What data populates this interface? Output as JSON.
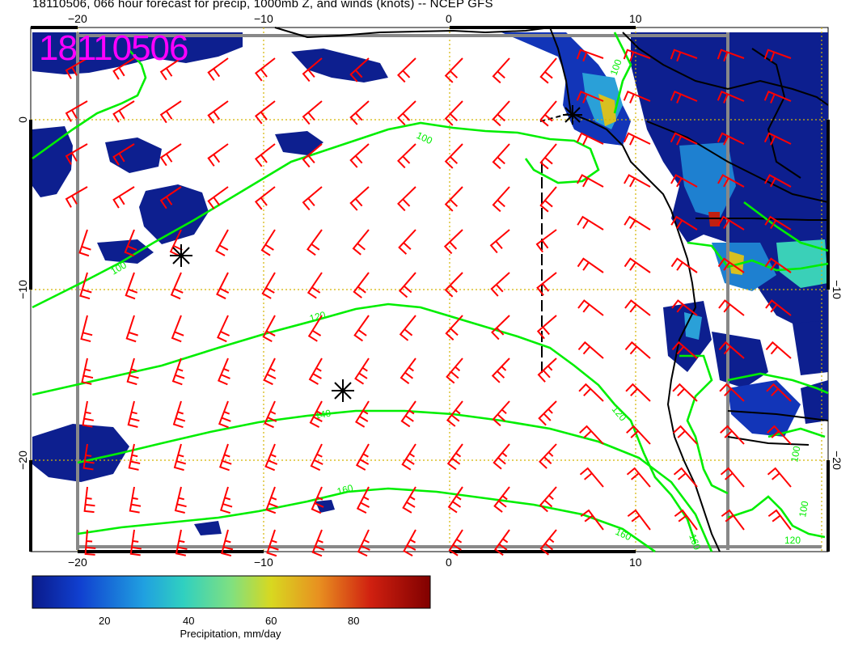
{
  "title": "18110506, 066 hour forecast for precip, 1000mb Z, and winds (knots) -- NCEP GFS",
  "date_stamp": "18110506",
  "axes": {
    "lon_ticks_top": [
      "−20",
      "−10",
      "0",
      "10"
    ],
    "lon_ticks_bottom": [
      "−20",
      "−10",
      "0",
      "10"
    ],
    "lat_ticks_left": [
      "0",
      "−10",
      "−20"
    ],
    "lat_ticks_right": [
      "−10",
      "−20"
    ]
  },
  "contour_labels": [
    "100",
    "100",
    "100",
    "120",
    "120",
    "140",
    "160",
    "160",
    "160",
    "100",
    "100",
    "120"
  ],
  "colorbar": {
    "label": "Precipitation, mm/day",
    "ticks": [
      "20",
      "40",
      "60",
      "80"
    ],
    "colors": [
      "#0a1a8a",
      "#1040d0",
      "#20a0e0",
      "#30d0c0",
      "#80e080",
      "#d8d820",
      "#e89020",
      "#d02010",
      "#800000"
    ]
  },
  "colors": {
    "wind_barbs": "#ff0000",
    "contours": "#00ee00",
    "coastline": "#000000",
    "grid": "#d4b400",
    "stamp": "#ff00ff"
  },
  "legend_icons": [
    "storm-center-icon",
    "storm-center-icon",
    "storm-center-icon"
  ]
}
